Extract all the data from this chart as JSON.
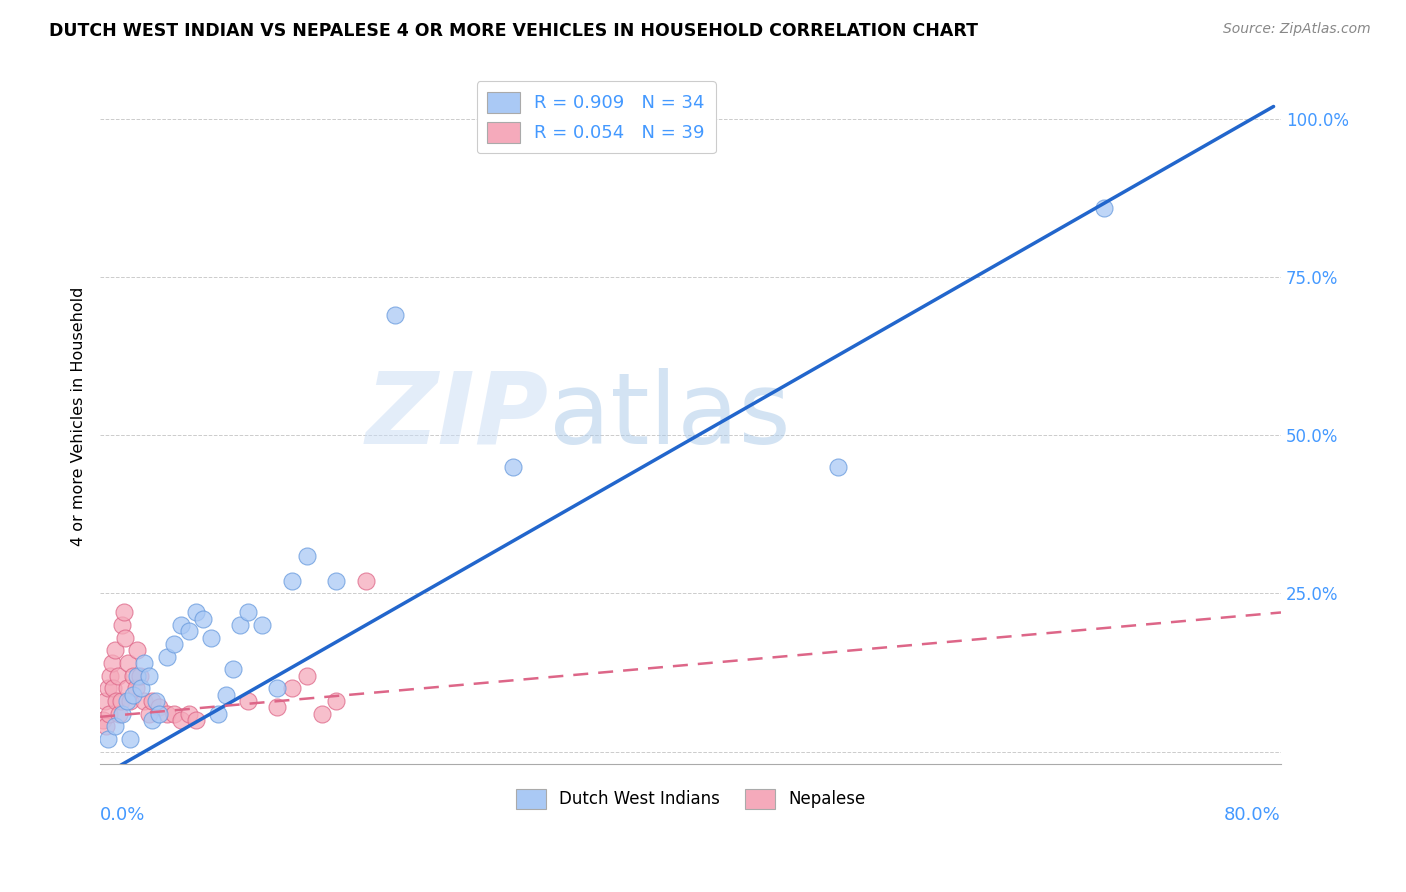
{
  "title": "DUTCH WEST INDIAN VS NEPALESE 4 OR MORE VEHICLES IN HOUSEHOLD CORRELATION CHART",
  "source": "Source: ZipAtlas.com",
  "ylabel": "4 or more Vehicles in Household",
  "ytick_positions": [
    0.0,
    0.25,
    0.5,
    0.75,
    1.0
  ],
  "ytick_labels": [
    "",
    "25.0%",
    "50.0%",
    "75.0%",
    "100.0%"
  ],
  "xlim": [
    0.0,
    0.8
  ],
  "ylim": [
    -0.02,
    1.08
  ],
  "legend_entry1_color": "#aac9f5",
  "legend_entry1_edge": "#6699dd",
  "legend_entry1_label": "Dutch West Indians",
  "legend_entry1_r": "R = 0.909",
  "legend_entry1_n": "N = 34",
  "legend_entry2_color": "#f5aabb",
  "legend_entry2_edge": "#dd6688",
  "legend_entry2_label": "Nepalese",
  "legend_entry2_r": "R = 0.054",
  "legend_entry2_n": "N = 39",
  "watermark_zip": "ZIP",
  "watermark_atlas": "atlas",
  "blue_line_x0": 0.0,
  "blue_line_y0": -0.04,
  "blue_line_x1": 0.795,
  "blue_line_y1": 1.02,
  "pink_line_x0": 0.0,
  "pink_line_y0": 0.055,
  "pink_line_x1": 0.8,
  "pink_line_y1": 0.22,
  "blue_line_color": "#2266cc",
  "pink_line_color": "#dd6688",
  "axis_label_color": "#4499ff",
  "grid_color": "#cccccc",
  "background_color": "#ffffff",
  "scatter_blue_x": [
    0.005,
    0.01,
    0.015,
    0.018,
    0.02,
    0.022,
    0.025,
    0.028,
    0.03,
    0.033,
    0.035,
    0.038,
    0.04,
    0.045,
    0.05,
    0.055,
    0.06,
    0.065,
    0.07,
    0.075,
    0.08,
    0.085,
    0.09,
    0.095,
    0.1,
    0.11,
    0.12,
    0.13,
    0.14,
    0.16,
    0.2,
    0.28,
    0.5,
    0.68
  ],
  "scatter_blue_y": [
    0.02,
    0.04,
    0.06,
    0.08,
    0.02,
    0.09,
    0.12,
    0.1,
    0.14,
    0.12,
    0.05,
    0.08,
    0.06,
    0.15,
    0.17,
    0.2,
    0.19,
    0.22,
    0.21,
    0.18,
    0.06,
    0.09,
    0.13,
    0.2,
    0.22,
    0.2,
    0.1,
    0.27,
    0.31,
    0.27,
    0.69,
    0.45,
    0.45,
    0.86
  ],
  "scatter_pink_x": [
    0.002,
    0.003,
    0.004,
    0.005,
    0.006,
    0.007,
    0.008,
    0.009,
    0.01,
    0.011,
    0.012,
    0.013,
    0.014,
    0.015,
    0.016,
    0.017,
    0.018,
    0.019,
    0.02,
    0.022,
    0.024,
    0.025,
    0.027,
    0.03,
    0.033,
    0.035,
    0.04,
    0.045,
    0.05,
    0.055,
    0.06,
    0.065,
    0.1,
    0.12,
    0.13,
    0.14,
    0.15,
    0.16,
    0.18
  ],
  "scatter_pink_y": [
    0.05,
    0.08,
    0.04,
    0.1,
    0.06,
    0.12,
    0.14,
    0.1,
    0.16,
    0.08,
    0.12,
    0.06,
    0.08,
    0.2,
    0.22,
    0.18,
    0.1,
    0.14,
    0.08,
    0.12,
    0.1,
    0.16,
    0.12,
    0.08,
    0.06,
    0.08,
    0.07,
    0.06,
    0.06,
    0.05,
    0.06,
    0.05,
    0.08,
    0.07,
    0.1,
    0.12,
    0.06,
    0.08,
    0.27
  ]
}
